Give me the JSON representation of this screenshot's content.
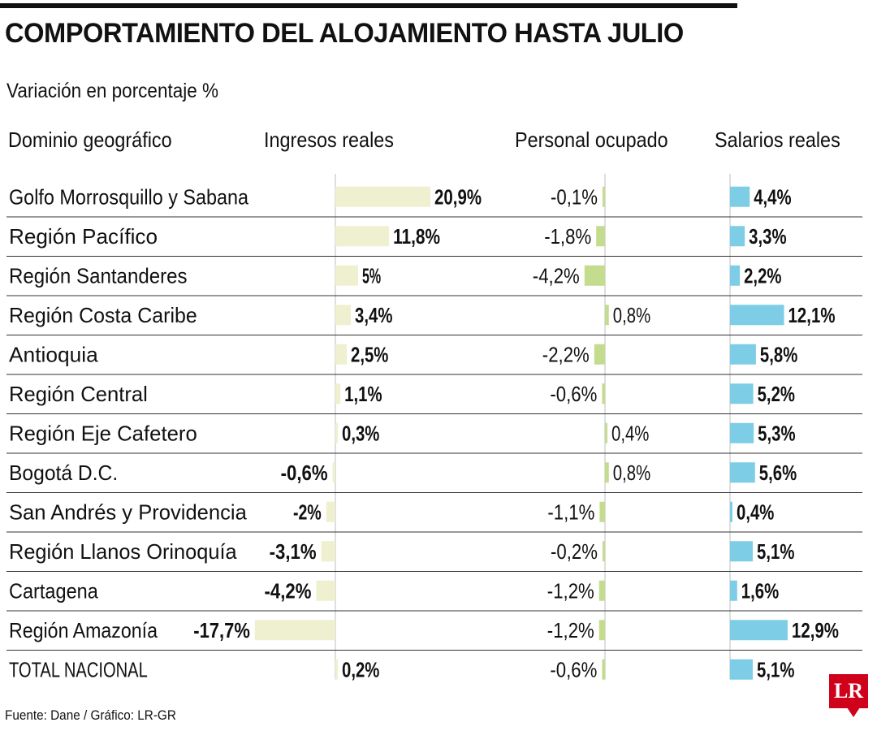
{
  "title": "COMPORTAMIENTO DEL ALOJAMIENTO HASTA JULIO",
  "subtitle": "Variación en porcentaje %",
  "headers": {
    "region": "Dominio geográfico",
    "ingresos": "Ingresos reales",
    "personal": "Personal ocupado",
    "salarios": "Salarios reales"
  },
  "source": "Fuente: Dane / Gráfico: LR-GR",
  "logo": "LR",
  "colors": {
    "ingresos_bar": "#eef0cf",
    "personal_bar": "#c4dc8e",
    "salarios_bar": "#7ecde6",
    "axis": "#bdbdbd",
    "separator": "#333333",
    "logo": "#d0021b"
  },
  "chart_data": {
    "type": "bar",
    "categories": [
      "Golfo Morrosquillo y Sabana",
      "Región Pacífico",
      "Región Santanderes",
      "Región Costa Caribe",
      "Antioquia",
      "Región Central",
      "Región Eje Cafetero",
      "Bogotá D.C.",
      "San Andrés y Providencia",
      "Región Llanos Orinoquía",
      "Cartagena",
      "Región Amazonía",
      "TOTAL NACIONAL"
    ],
    "series": [
      {
        "name": "Ingresos reales",
        "values": [
          20.9,
          11.8,
          5,
          3.4,
          2.5,
          1.1,
          0.3,
          -0.6,
          -2,
          -3.1,
          -4.2,
          -17.7,
          0.2
        ],
        "labels": [
          "20,9%",
          "11,8%",
          "5%",
          "3,4%",
          "2,5%",
          "1,1%",
          "0,3%",
          "-0,6%",
          "-2%",
          "-3,1%",
          "-4,2%",
          "-17,7%",
          "0,2%"
        ]
      },
      {
        "name": "Personal ocupado",
        "values": [
          -0.1,
          -1.8,
          -4.2,
          0.8,
          -2.2,
          -0.6,
          0.4,
          0.8,
          -1.1,
          -0.2,
          -1.2,
          -1.2,
          -0.6
        ],
        "labels": [
          "-0,1%",
          "-1,8%",
          "-4,2%",
          "0,8%",
          "-2,2%",
          "-0,6%",
          "0,4%",
          "0,8%",
          "-1,1%",
          "-0,2%",
          "-1,2%",
          "-1,2%",
          "-0,6%"
        ]
      },
      {
        "name": "Salarios reales",
        "values": [
          4.4,
          3.3,
          2.2,
          12.1,
          5.8,
          5.2,
          5.3,
          5.6,
          0.4,
          5.1,
          1.6,
          12.9,
          5.1
        ],
        "labels": [
          "4,4%",
          "3,3%",
          "2,2%",
          "12,1%",
          "5,8%",
          "5,2%",
          "5,3%",
          "5,6%",
          "0,4%",
          "5,1%",
          "1,6%",
          "12,9%",
          "5,1%"
        ]
      }
    ]
  }
}
